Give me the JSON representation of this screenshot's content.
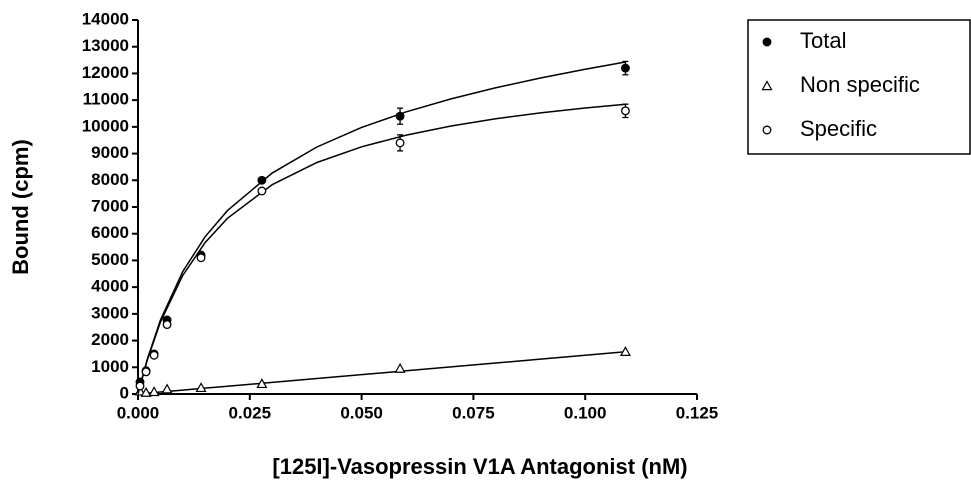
{
  "chart_data": {
    "type": "scatter",
    "x_label": "[125I]-Vasopressin V1A Antagonist (nM)",
    "y_label": "Bound (cpm)",
    "xlim": [
      0,
      0.125
    ],
    "ylim": [
      0,
      14000
    ],
    "xticks": [
      {
        "value": 0,
        "label": "0.000"
      },
      {
        "value": 0.025,
        "label": "0.025"
      },
      {
        "value": 0.05,
        "label": "0.050"
      },
      {
        "value": 0.075,
        "label": "0.075"
      },
      {
        "value": 0.1,
        "label": "0.100"
      },
      {
        "value": 0.125,
        "label": "0.125"
      }
    ],
    "yticks": [
      0,
      1000,
      2000,
      3000,
      4000,
      5000,
      6000,
      7000,
      8000,
      9000,
      10000,
      11000,
      12000,
      13000,
      14000
    ],
    "fit_x": [
      0,
      0.002,
      0.005,
      0.01,
      0.015,
      0.02,
      0.03,
      0.04,
      0.05,
      0.06,
      0.07,
      0.08,
      0.09,
      0.1,
      0.109
    ],
    "series": [
      {
        "name": "Total",
        "marker": "filled-circle",
        "color": "#000000",
        "x": [
          0.00045,
          0.0018,
          0.0036,
          0.0065,
          0.0141,
          0.0277,
          0.0586,
          0.109
        ],
        "values": [
          450,
          870,
          1500,
          2770,
          5200,
          8000,
          10400,
          12200
        ],
        "errors": [
          null,
          null,
          null,
          null,
          null,
          null,
          300,
          250
        ],
        "fit_values": [
          0,
          1260,
          2761,
          4582,
          5884,
          6866,
          8271,
          9246,
          9979,
          10562,
          11047,
          11463,
          11829,
          12157,
          12429
        ]
      },
      {
        "name": "Non specific",
        "marker": "open-triangle",
        "color": "#000000",
        "x": [
          0.00045,
          0.0018,
          0.0036,
          0.0065,
          0.0141,
          0.0277,
          0.0586,
          0.109
        ],
        "values": [
          100,
          50,
          80,
          180,
          230,
          380,
          950,
          1580
        ],
        "errors": [
          null,
          null,
          null,
          null,
          null,
          null,
          null,
          null
        ],
        "fit_values": [
          0,
          29,
          73,
          145,
          218,
          290,
          435,
          580,
          725,
          870,
          1015,
          1160,
          1305,
          1450,
          1581
        ]
      },
      {
        "name": "Specific",
        "marker": "open-circle",
        "color": "#000000",
        "x": [
          0.00045,
          0.0018,
          0.0036,
          0.0065,
          0.0141,
          0.0277,
          0.0586,
          0.109
        ],
        "values": [
          300,
          830,
          1450,
          2600,
          5100,
          7600,
          9400,
          10600
        ],
        "errors": [
          null,
          null,
          null,
          null,
          null,
          null,
          300,
          250
        ],
        "fit_values": [
          0,
          1231,
          2688,
          4437,
          5666,
          6576,
          7836,
          8666,
          9254,
          9692,
          10032,
          10303,
          10524,
          10707,
          10848
        ]
      }
    ]
  }
}
